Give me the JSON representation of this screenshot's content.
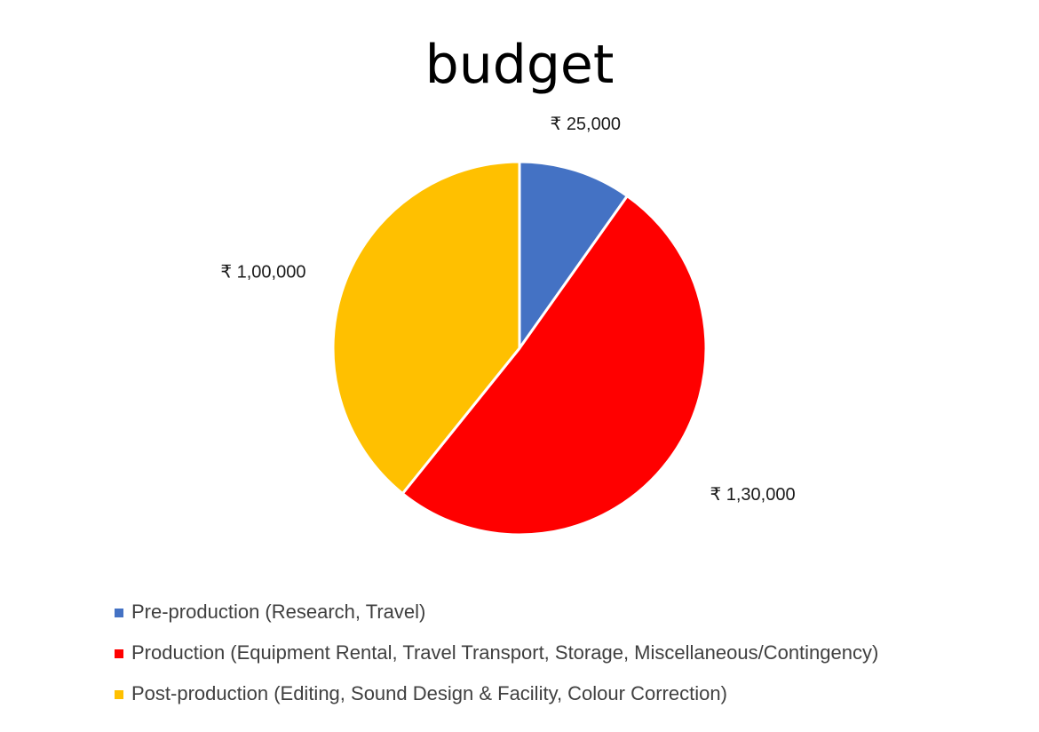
{
  "chart_data": {
    "type": "pie",
    "title": "budget",
    "categories": [
      "Pre-production (Research, Travel)",
      "Production (Equipment Rental, Travel Transport, Storage, Miscellaneous/Contingency)",
      "Post-production (Editing, Sound Design & Facility, Colour Correction)"
    ],
    "values": [
      25000,
      130000,
      100000
    ],
    "data_labels": [
      "₹ 25,000",
      "₹ 1,30,000",
      "₹ 1,00,000"
    ],
    "colors": [
      "#4472C4",
      "#FF0000",
      "#FFC000"
    ],
    "legend": "bottom-left"
  }
}
